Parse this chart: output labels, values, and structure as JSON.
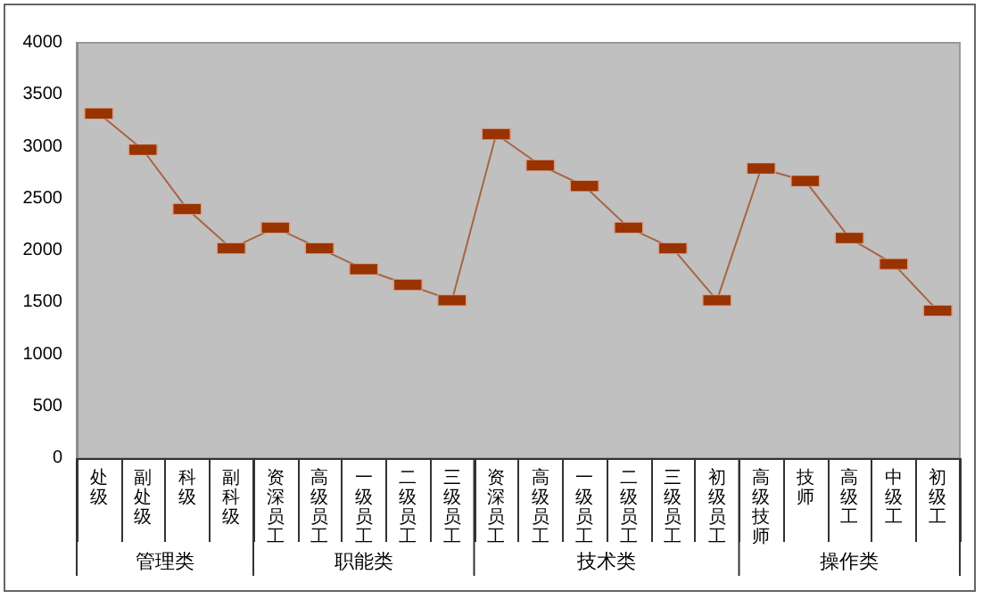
{
  "chart_data": {
    "type": "line",
    "categories": [
      "处级",
      "副处级",
      "科级",
      "副科级",
      "资深员工",
      "高级员工",
      "一级员工",
      "二级员工",
      "三级员工",
      "资深员工",
      "高级员工",
      "一级员工",
      "二级员工",
      "三级员工",
      "初级员工",
      "高级技师",
      "技师",
      "高级工",
      "中级工",
      "初级工"
    ],
    "series": [
      {
        "color": "#993300",
        "values": [
          3320,
          2970,
          2400,
          2020,
          2220,
          2020,
          1820,
          1670,
          1520,
          3120,
          2820,
          2620,
          2220,
          2020,
          1520,
          2790,
          2670,
          2120,
          1870,
          1420
        ]
      }
    ],
    "annotations": [
      "管理类",
      "职能类",
      "技术类",
      "操作类"
    ],
    "ylim": [
      0,
      4000
    ],
    "yticks": [
      0,
      500,
      1000,
      1500,
      2000,
      2500,
      3000,
      3500,
      4000
    ],
    "grid": false,
    "marker": "square",
    "line_style": "solid"
  }
}
